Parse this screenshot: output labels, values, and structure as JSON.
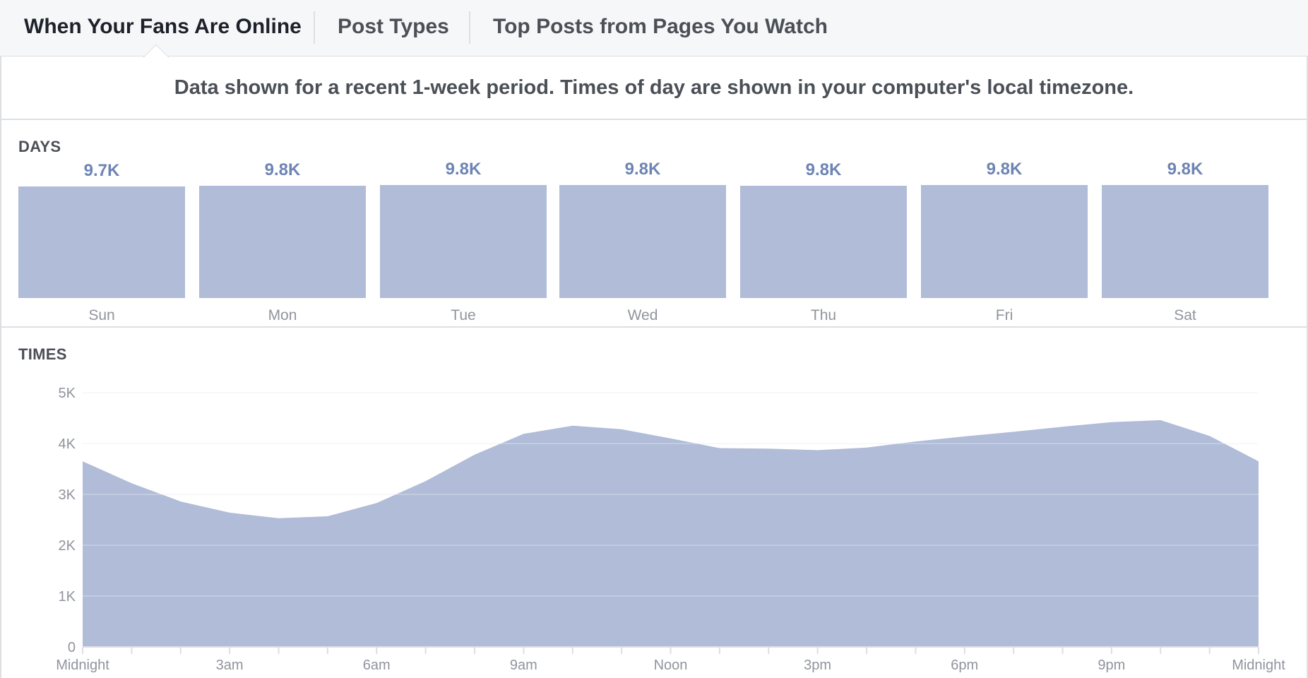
{
  "tabs": [
    {
      "label": "When Your Fans Are Online",
      "active": true
    },
    {
      "label": "Post Types",
      "active": false
    },
    {
      "label": "Top Posts from Pages You Watch",
      "active": false
    }
  ],
  "notice": "Data shown for a recent 1-week period. Times of day are shown in your computer's local timezone.",
  "days_section": {
    "title": "DAYS"
  },
  "times_section": {
    "title": "TIMES"
  },
  "colors": {
    "bar": "#b0bcd8",
    "value_label": "#6d84b4",
    "grid": "#e9ebee",
    "axis_text": "#90949c"
  },
  "chart_data": [
    {
      "type": "bar",
      "categories": [
        "Sun",
        "Mon",
        "Tue",
        "Wed",
        "Thu",
        "Fri",
        "Sat"
      ],
      "values": [
        9700,
        9750,
        9800,
        9800,
        9750,
        9800,
        9800
      ],
      "data_labels": [
        "9.7K",
        "9.8K",
        "9.8K",
        "9.8K",
        "9.8K",
        "9.8K",
        "9.8K"
      ],
      "grid": false
    },
    {
      "type": "area",
      "x": [
        0,
        1,
        2,
        3,
        4,
        5,
        6,
        7,
        8,
        9,
        10,
        11,
        12,
        13,
        14,
        15,
        16,
        17,
        18,
        19,
        20,
        21,
        22,
        23,
        24
      ],
      "values": [
        3650,
        3220,
        2860,
        2640,
        2530,
        2570,
        2830,
        3260,
        3780,
        4190,
        4350,
        4280,
        4100,
        3910,
        3900,
        3870,
        3920,
        4040,
        4140,
        4230,
        4330,
        4420,
        4460,
        4150,
        3650
      ],
      "x_tick_labels": [
        "Midnight",
        "3am",
        "6am",
        "9am",
        "Noon",
        "3pm",
        "6pm",
        "9pm",
        "Midnight"
      ],
      "x_tick_positions": [
        0,
        3,
        6,
        9,
        12,
        15,
        18,
        21,
        24
      ],
      "y_tick_labels": [
        "0",
        "1K",
        "2K",
        "3K",
        "4K",
        "5K"
      ],
      "y_tick_values": [
        0,
        1000,
        2000,
        3000,
        4000,
        5000
      ],
      "ylim": [
        0,
        5000
      ],
      "xlim": [
        0,
        24
      ],
      "grid": true
    }
  ]
}
